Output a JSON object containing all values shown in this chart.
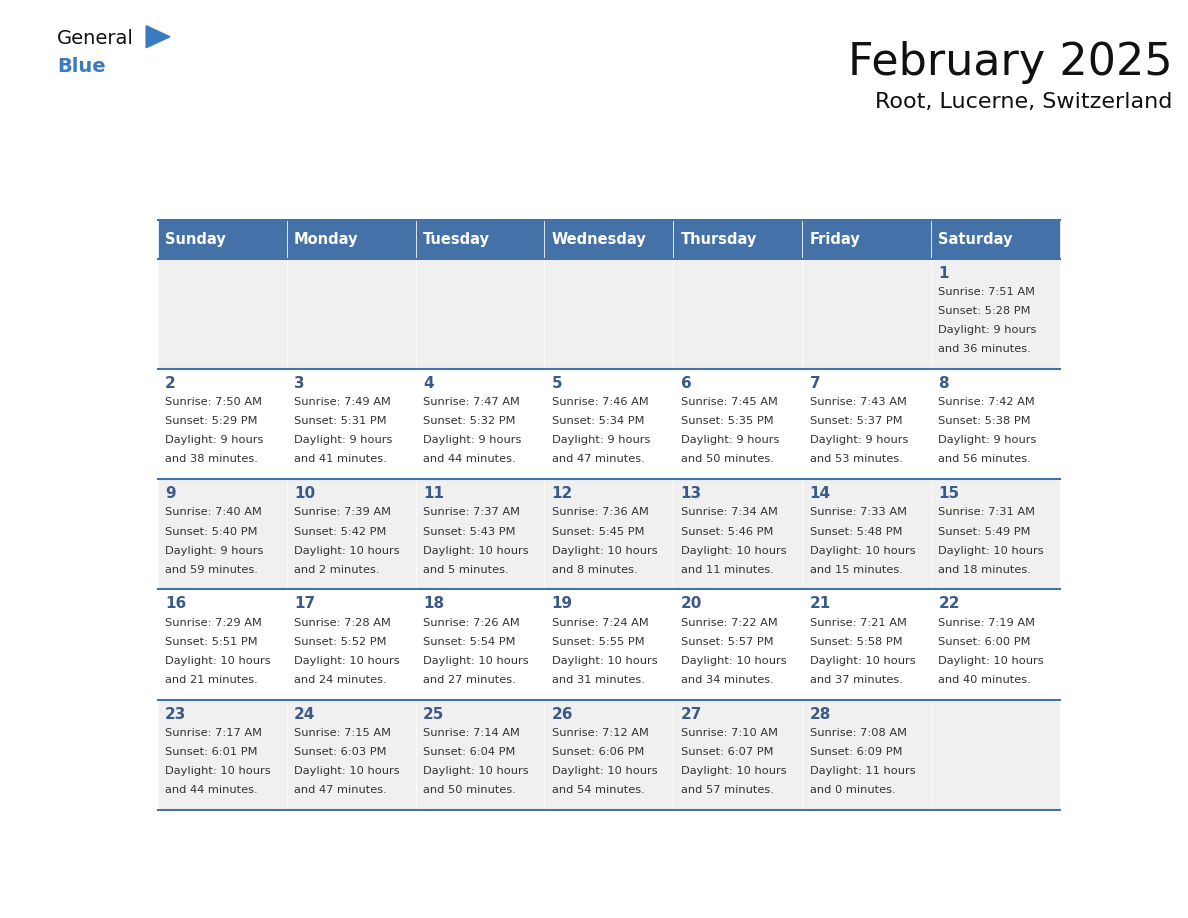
{
  "title": "February 2025",
  "subtitle": "Root, Lucerne, Switzerland",
  "header_bg": "#4472a8",
  "header_text": "#ffffff",
  "days_of_week": [
    "Sunday",
    "Monday",
    "Tuesday",
    "Wednesday",
    "Thursday",
    "Friday",
    "Saturday"
  ],
  "row1_bg": "#f0f0f0",
  "row2_bg": "#ffffff",
  "cell_text_color": "#333333",
  "day_num_color": "#3a5a8a",
  "border_color": "#4472a8",
  "calendar_data": [
    [
      {
        "day": null,
        "sunrise": null,
        "sunset": null,
        "daylight": null
      },
      {
        "day": null,
        "sunrise": null,
        "sunset": null,
        "daylight": null
      },
      {
        "day": null,
        "sunrise": null,
        "sunset": null,
        "daylight": null
      },
      {
        "day": null,
        "sunrise": null,
        "sunset": null,
        "daylight": null
      },
      {
        "day": null,
        "sunrise": null,
        "sunset": null,
        "daylight": null
      },
      {
        "day": null,
        "sunrise": null,
        "sunset": null,
        "daylight": null
      },
      {
        "day": 1,
        "sunrise": "7:51 AM",
        "sunset": "5:28 PM",
        "daylight": "9 hours and 36 minutes."
      }
    ],
    [
      {
        "day": 2,
        "sunrise": "7:50 AM",
        "sunset": "5:29 PM",
        "daylight": "9 hours and 38 minutes."
      },
      {
        "day": 3,
        "sunrise": "7:49 AM",
        "sunset": "5:31 PM",
        "daylight": "9 hours and 41 minutes."
      },
      {
        "day": 4,
        "sunrise": "7:47 AM",
        "sunset": "5:32 PM",
        "daylight": "9 hours and 44 minutes."
      },
      {
        "day": 5,
        "sunrise": "7:46 AM",
        "sunset": "5:34 PM",
        "daylight": "9 hours and 47 minutes."
      },
      {
        "day": 6,
        "sunrise": "7:45 AM",
        "sunset": "5:35 PM",
        "daylight": "9 hours and 50 minutes."
      },
      {
        "day": 7,
        "sunrise": "7:43 AM",
        "sunset": "5:37 PM",
        "daylight": "9 hours and 53 minutes."
      },
      {
        "day": 8,
        "sunrise": "7:42 AM",
        "sunset": "5:38 PM",
        "daylight": "9 hours and 56 minutes."
      }
    ],
    [
      {
        "day": 9,
        "sunrise": "7:40 AM",
        "sunset": "5:40 PM",
        "daylight": "9 hours and 59 minutes."
      },
      {
        "day": 10,
        "sunrise": "7:39 AM",
        "sunset": "5:42 PM",
        "daylight": "10 hours and 2 minutes."
      },
      {
        "day": 11,
        "sunrise": "7:37 AM",
        "sunset": "5:43 PM",
        "daylight": "10 hours and 5 minutes."
      },
      {
        "day": 12,
        "sunrise": "7:36 AM",
        "sunset": "5:45 PM",
        "daylight": "10 hours and 8 minutes."
      },
      {
        "day": 13,
        "sunrise": "7:34 AM",
        "sunset": "5:46 PM",
        "daylight": "10 hours and 11 minutes."
      },
      {
        "day": 14,
        "sunrise": "7:33 AM",
        "sunset": "5:48 PM",
        "daylight": "10 hours and 15 minutes."
      },
      {
        "day": 15,
        "sunrise": "7:31 AM",
        "sunset": "5:49 PM",
        "daylight": "10 hours and 18 minutes."
      }
    ],
    [
      {
        "day": 16,
        "sunrise": "7:29 AM",
        "sunset": "5:51 PM",
        "daylight": "10 hours and 21 minutes."
      },
      {
        "day": 17,
        "sunrise": "7:28 AM",
        "sunset": "5:52 PM",
        "daylight": "10 hours and 24 minutes."
      },
      {
        "day": 18,
        "sunrise": "7:26 AM",
        "sunset": "5:54 PM",
        "daylight": "10 hours and 27 minutes."
      },
      {
        "day": 19,
        "sunrise": "7:24 AM",
        "sunset": "5:55 PM",
        "daylight": "10 hours and 31 minutes."
      },
      {
        "day": 20,
        "sunrise": "7:22 AM",
        "sunset": "5:57 PM",
        "daylight": "10 hours and 34 minutes."
      },
      {
        "day": 21,
        "sunrise": "7:21 AM",
        "sunset": "5:58 PM",
        "daylight": "10 hours and 37 minutes."
      },
      {
        "day": 22,
        "sunrise": "7:19 AM",
        "sunset": "6:00 PM",
        "daylight": "10 hours and 40 minutes."
      }
    ],
    [
      {
        "day": 23,
        "sunrise": "7:17 AM",
        "sunset": "6:01 PM",
        "daylight": "10 hours and 44 minutes."
      },
      {
        "day": 24,
        "sunrise": "7:15 AM",
        "sunset": "6:03 PM",
        "daylight": "10 hours and 47 minutes."
      },
      {
        "day": 25,
        "sunrise": "7:14 AM",
        "sunset": "6:04 PM",
        "daylight": "10 hours and 50 minutes."
      },
      {
        "day": 26,
        "sunrise": "7:12 AM",
        "sunset": "6:06 PM",
        "daylight": "10 hours and 54 minutes."
      },
      {
        "day": 27,
        "sunrise": "7:10 AM",
        "sunset": "6:07 PM",
        "daylight": "10 hours and 57 minutes."
      },
      {
        "day": 28,
        "sunrise": "7:08 AM",
        "sunset": "6:09 PM",
        "daylight": "11 hours and 0 minutes."
      },
      {
        "day": null,
        "sunrise": null,
        "sunset": null,
        "daylight": null
      }
    ]
  ]
}
